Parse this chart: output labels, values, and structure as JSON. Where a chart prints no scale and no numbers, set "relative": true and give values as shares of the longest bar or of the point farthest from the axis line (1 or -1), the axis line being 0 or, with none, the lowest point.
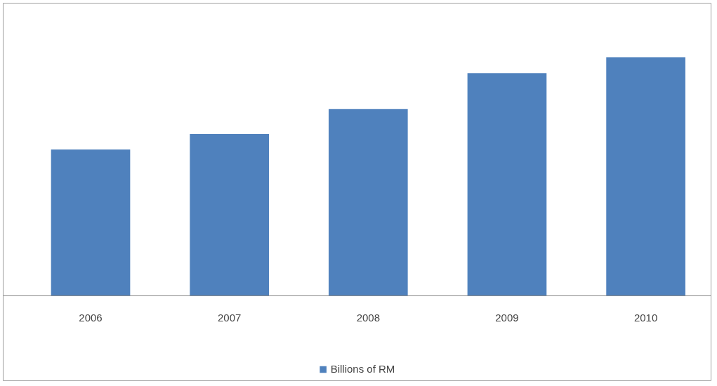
{
  "chart_data": {
    "type": "bar",
    "relative": true,
    "categories": [
      "2006",
      "2007",
      "2008",
      "2009",
      "2010"
    ],
    "series": [
      {
        "name": "Billions of RM",
        "color": "#4f81bd",
        "values": [
          0.614,
          0.678,
          0.783,
          0.933,
          1
        ]
      }
    ],
    "legend": "bottom",
    "grid": false
  }
}
